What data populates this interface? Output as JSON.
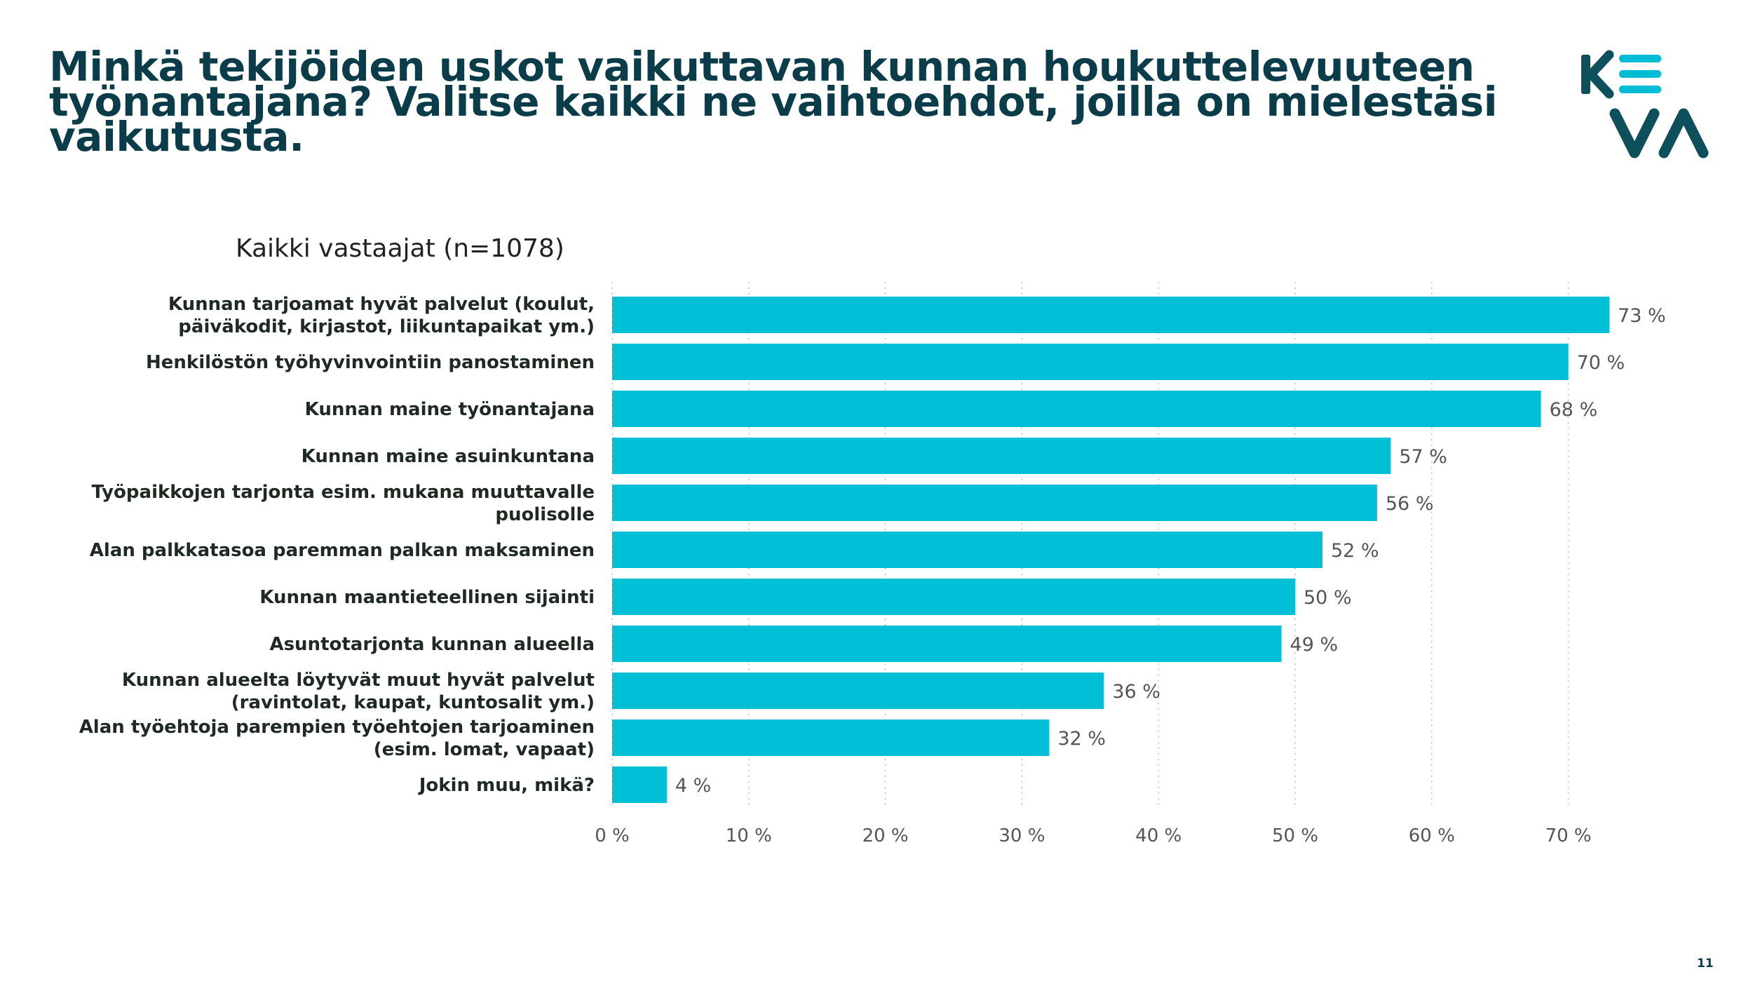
{
  "title": "Minkä tekijöiden uskot vaikuttavan kunnan houkuttelevuuteen työnantajana? Valitse kaikki ne vaihtoehdot, joilla on mielestäsi vaikutusta.",
  "page_number": "11",
  "logo": {
    "text": "KEVA",
    "icon": "keva-logo",
    "color": "#0e4f5c",
    "accent": "#00bcd4"
  },
  "colors": {
    "bar": "#00bfd6",
    "title": "#0b3c49",
    "label": "#1e2a22",
    "value": "#555555",
    "grid": "#cccccc"
  },
  "chart_data": {
    "type": "bar",
    "orientation": "horizontal",
    "subtitle": "Kaikki vastaajat (n=1078)",
    "categories": [
      [
        "Kunnan tarjoamat hyvät palvelut (koulut,",
        "päiväkodit, kirjastot, liikuntapaikat ym.)"
      ],
      [
        "Henkilöstön työhyvinvointiin panostaminen"
      ],
      [
        "Kunnan maine työnantajana"
      ],
      [
        "Kunnan maine asuinkuntana"
      ],
      [
        "Työpaikkojen tarjonta esim. mukana muuttavalle",
        "puolisolle"
      ],
      [
        "Alan palkkatasoa paremman palkan maksaminen"
      ],
      [
        "Kunnan maantieteellinen sijainti"
      ],
      [
        "Asuntotarjonta kunnan alueella"
      ],
      [
        "Kunnan alueelta löytyvät muut hyvät palvelut",
        "(ravintolat, kaupat, kuntosalit ym.)"
      ],
      [
        "Alan työehtoja parempien työehtojen tarjoaminen",
        "(esim. lomat, vapaat)"
      ],
      [
        "Jokin muu, mikä?"
      ]
    ],
    "values": [
      73,
      70,
      68,
      57,
      56,
      52,
      50,
      49,
      36,
      32,
      4
    ],
    "value_labels": [
      "73 %",
      "70 %",
      "68 %",
      "57 %",
      "56 %",
      "52 %",
      "50 %",
      "49 %",
      "36 %",
      "32 %",
      "4 %"
    ],
    "xlim": [
      0,
      70
    ],
    "xticks": [
      0,
      10,
      20,
      30,
      40,
      50,
      60,
      70
    ],
    "xtick_labels": [
      "0 %",
      "10 %",
      "20 %",
      "30 %",
      "40 %",
      "50 %",
      "60 %",
      "70 %"
    ],
    "grid": true,
    "legend": "none"
  }
}
